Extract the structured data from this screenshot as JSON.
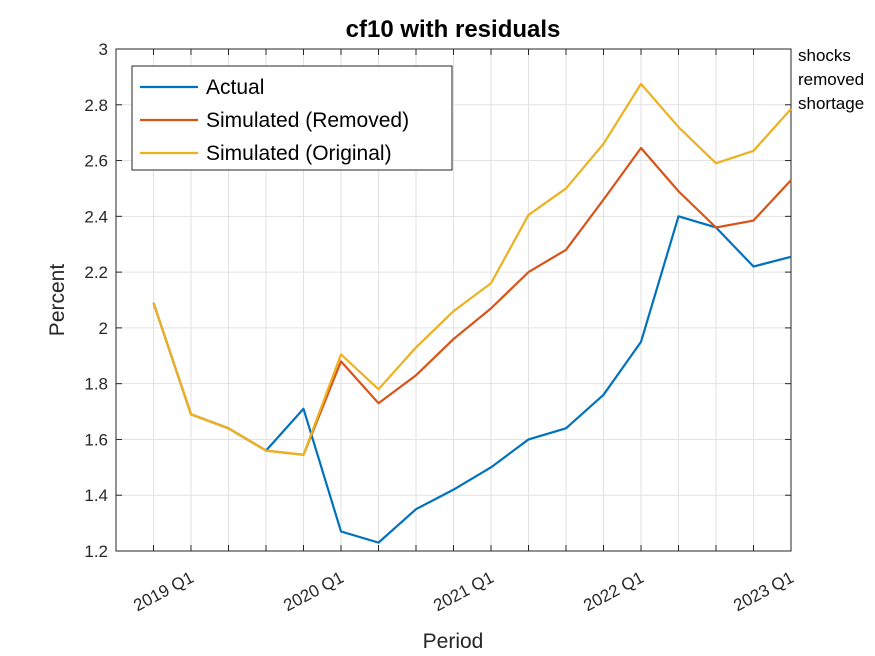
{
  "chart_data": {
    "type": "line",
    "title": "cf10 with residuals",
    "xlabel": "Period",
    "ylabel": "Percent",
    "ylim": [
      1.2,
      3.0
    ],
    "yticks": [
      1.2,
      1.4,
      1.6,
      1.8,
      2.0,
      2.2,
      2.4,
      2.6,
      2.8,
      3.0
    ],
    "ytick_labels": [
      "1.2",
      "1.4",
      "1.6",
      "1.8",
      "2",
      "2.2",
      "2.4",
      "2.6",
      "2.8",
      "3"
    ],
    "x": [
      "2018 Q4",
      "2019 Q1",
      "2019 Q2",
      "2019 Q3",
      "2019 Q4",
      "2020 Q1",
      "2020 Q2",
      "2020 Q3",
      "2020 Q4",
      "2021 Q1",
      "2021 Q2",
      "2021 Q3",
      "2021 Q4",
      "2022 Q1",
      "2022 Q2",
      "2022 Q3",
      "2022 Q4",
      "2023 Q1"
    ],
    "xlim": [
      "2018 Q3",
      "2023 Q1"
    ],
    "xtick_labels": [
      "2019 Q1",
      "2020 Q1",
      "2021 Q1",
      "2022 Q1",
      "2023 Q1"
    ],
    "grid": true,
    "legend_location": "top-left",
    "annotation": [
      "shocks",
      "removed",
      "shortage"
    ],
    "series": [
      {
        "name": "Actual",
        "color": "#0072BD",
        "values": [
          2.09,
          1.69,
          1.64,
          1.56,
          1.71,
          1.27,
          1.23,
          1.35,
          1.42,
          1.5,
          1.6,
          1.64,
          1.76,
          1.95,
          2.4,
          2.36,
          2.22,
          2.255
        ]
      },
      {
        "name": "Simulated (Removed)",
        "color": "#D95319",
        "values": [
          2.09,
          1.69,
          1.64,
          1.56,
          1.545,
          1.88,
          1.73,
          1.83,
          1.96,
          2.07,
          2.2,
          2.28,
          2.46,
          2.645,
          2.49,
          2.36,
          2.385,
          2.53
        ]
      },
      {
        "name": "Simulated (Original)",
        "color": "#EDB120",
        "values": [
          2.09,
          1.69,
          1.64,
          1.56,
          1.545,
          1.905,
          1.78,
          1.93,
          2.06,
          2.16,
          2.405,
          2.5,
          2.66,
          2.875,
          2.72,
          2.59,
          2.635,
          2.785
        ]
      }
    ]
  }
}
